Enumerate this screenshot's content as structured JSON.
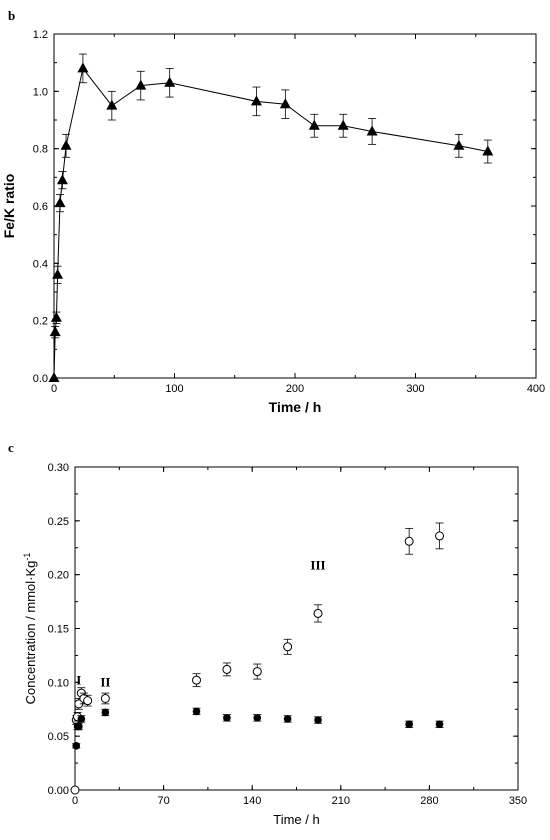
{
  "chart_data": [
    {
      "panel": "b",
      "type": "line",
      "title": "",
      "xlabel": "Time / h",
      "ylabel": "Fe/K ratio",
      "xlim": [
        0,
        400
      ],
      "ylim": [
        0,
        1.2
      ],
      "xticks": [
        "0",
        "100",
        "200",
        "300",
        "400"
      ],
      "yticks": [
        "0.0",
        "0.2",
        "0.4",
        "0.6",
        "0.8",
        "1.0",
        "1.2"
      ],
      "grid": false,
      "series": [
        {
          "marker": "filled-triangle",
          "color": "#000000",
          "x": [
            0,
            1,
            2,
            3,
            5,
            7,
            10,
            24,
            48,
            72,
            96,
            168,
            192,
            216,
            240,
            264,
            336,
            360
          ],
          "y": [
            0.0,
            0.16,
            0.21,
            0.36,
            0.61,
            0.69,
            0.81,
            1.08,
            0.95,
            1.02,
            1.03,
            0.965,
            0.955,
            0.88,
            0.88,
            0.86,
            0.81,
            0.79
          ],
          "err": [
            0.0,
            0.02,
            0.02,
            0.03,
            0.03,
            0.03,
            0.04,
            0.05,
            0.05,
            0.05,
            0.05,
            0.05,
            0.05,
            0.04,
            0.04,
            0.045,
            0.04,
            0.04
          ]
        }
      ]
    },
    {
      "panel": "c",
      "type": "scatter",
      "title": "",
      "xlabel": "Time / h",
      "ylabel": "Concentration / mmol·Kg",
      "ylabel_superscript": "-1",
      "xlim": [
        0,
        350
      ],
      "ylim": [
        0,
        0.3
      ],
      "xticks": [
        "0",
        "70",
        "140",
        "210",
        "280",
        "350"
      ],
      "yticks": [
        "0.00",
        "0.05",
        "0.10",
        "0.15",
        "0.20",
        "0.25",
        "0.30"
      ],
      "grid": false,
      "annotations": [
        {
          "text": "I",
          "x": 3,
          "y": 0.098
        },
        {
          "text": "II",
          "x": 24,
          "y": 0.096
        },
        {
          "text": "III",
          "x": 192,
          "y": 0.205
        }
      ],
      "series": [
        {
          "marker": "open-circle",
          "color": "#000000",
          "x": [
            0,
            1,
            2,
            3,
            5,
            7,
            10,
            24,
            96,
            120,
            144,
            168,
            192,
            264,
            288
          ],
          "y": [
            0.0,
            0.065,
            0.068,
            0.08,
            0.09,
            0.085,
            0.083,
            0.085,
            0.102,
            0.112,
            0.11,
            0.133,
            0.164,
            0.231,
            0.236
          ],
          "err": [
            0.0,
            0.004,
            0.004,
            0.005,
            0.005,
            0.005,
            0.005,
            0.005,
            0.006,
            0.006,
            0.007,
            0.007,
            0.008,
            0.012,
            0.012
          ]
        },
        {
          "marker": "filled-circle",
          "color": "#000000",
          "x": [
            1,
            2,
            3,
            5,
            24,
            96,
            120,
            144,
            168,
            192,
            264,
            288
          ],
          "y": [
            0.041,
            0.059,
            0.059,
            0.066,
            0.072,
            0.073,
            0.067,
            0.067,
            0.066,
            0.065,
            0.061,
            0.061
          ],
          "err": [
            0.002,
            0.003,
            0.003,
            0.003,
            0.003,
            0.003,
            0.003,
            0.003,
            0.003,
            0.003,
            0.003,
            0.003
          ]
        }
      ]
    }
  ]
}
